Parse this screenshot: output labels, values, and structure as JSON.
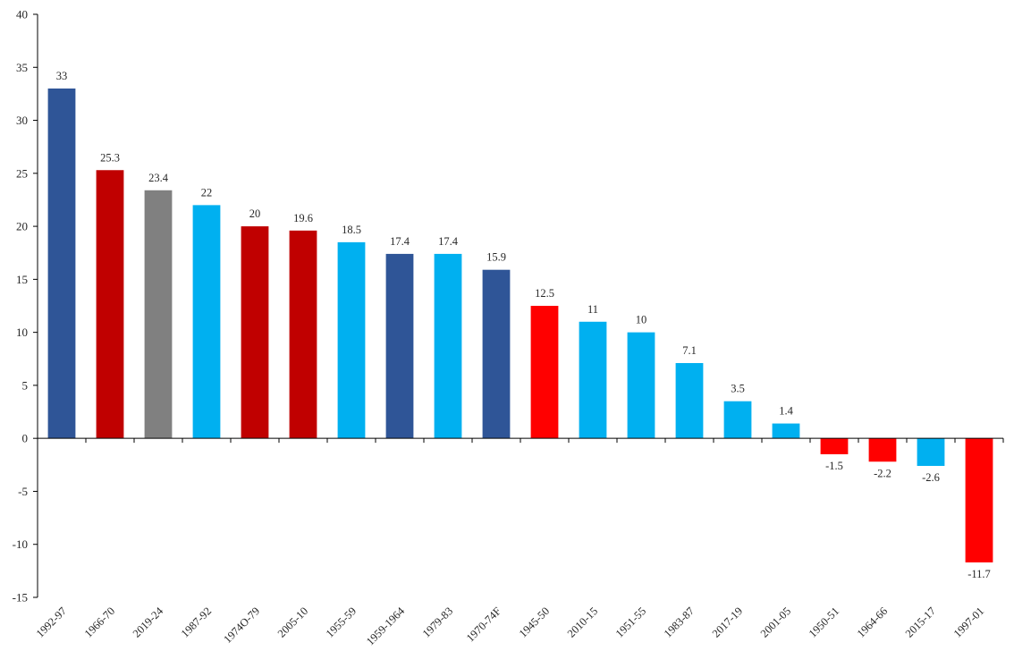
{
  "chart_data": {
    "type": "bar",
    "title": "",
    "xlabel": "",
    "ylabel": "",
    "ylim": [
      -15,
      40
    ],
    "yticks": [
      -15,
      -10,
      -5,
      0,
      5,
      10,
      15,
      20,
      25,
      30,
      35,
      40
    ],
    "grid": false,
    "legend": "none",
    "categories": [
      "1992-97",
      "1966-70",
      "2019-24",
      "1987-92",
      "1974O-79",
      "2005-10",
      "1955-59",
      "1959-1964",
      "1979-83",
      "1970-74F",
      "1945-50",
      "2010-15",
      "1951-55",
      "1983-87",
      "2017-19",
      "2001-05",
      "1950-51",
      "1964-66",
      "2015-17",
      "1997-01"
    ],
    "values": [
      33,
      25.3,
      23.4,
      22,
      20,
      19.6,
      18.5,
      17.4,
      17.4,
      15.9,
      12.5,
      11,
      10,
      7.1,
      3.5,
      1.4,
      -1.5,
      -2.2,
      -2.6,
      -11.7
    ],
    "data_labels": [
      "33",
      "25.3",
      "23.4",
      "22",
      "20",
      "19.6",
      "18.5",
      "17.4",
      "17.4",
      "15.9",
      "12.5",
      "11",
      "10",
      "7.1",
      "3.5",
      "1.4",
      "-1.5",
      "-2.2",
      "-2.6",
      "-11.7"
    ],
    "bar_colors": [
      "#2F5597",
      "#C00000",
      "#808080",
      "#00B0F0",
      "#C00000",
      "#C00000",
      "#00B0F0",
      "#2F5597",
      "#00B0F0",
      "#2F5597",
      "#FF0000",
      "#00B0F0",
      "#00B0F0",
      "#00B0F0",
      "#00B0F0",
      "#00B0F0",
      "#FF0000",
      "#FF0000",
      "#00B0F0",
      "#FF0000"
    ],
    "axis_color": "#000000",
    "text_color": "#262626"
  }
}
